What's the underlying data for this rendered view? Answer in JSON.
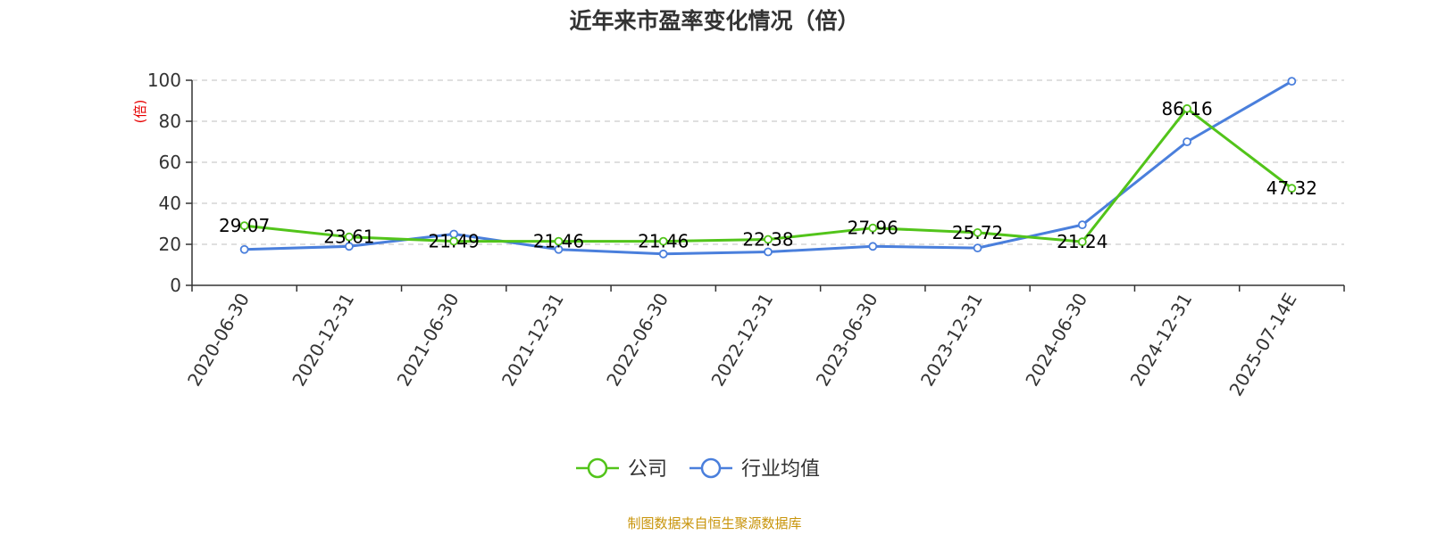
{
  "chart_data": {
    "type": "line",
    "title": "近年来市盈率变化情况（倍）",
    "ylabel": "(倍)",
    "ylim": [
      0,
      100
    ],
    "yticks": [
      0,
      20,
      40,
      60,
      80,
      100
    ],
    "grid": true,
    "legend_position": "bottom-center",
    "categories": [
      "2020-06-30",
      "2020-12-31",
      "2021-06-30",
      "2021-12-31",
      "2022-06-30",
      "2022-12-31",
      "2023-06-30",
      "2023-12-31",
      "2024-06-30",
      "2024-12-31",
      "2025-07-14E"
    ],
    "series": [
      {
        "name": "公司",
        "color": "#52c41a",
        "values": [
          29.07,
          23.61,
          21.49,
          21.46,
          21.46,
          22.38,
          27.96,
          25.72,
          21.24,
          86.16,
          47.32
        ],
        "labels": [
          "29.07",
          "23.61",
          "21.49",
          "21.46",
          "21.46",
          "22.38",
          "27.96",
          "25.72",
          "21.24",
          "86.16",
          "47.32"
        ]
      },
      {
        "name": "行业均值",
        "color": "#4a7fdc",
        "values": [
          17.5,
          19.0,
          25.0,
          17.5,
          15.3,
          16.3,
          19.0,
          18.2,
          29.5,
          70.0,
          99.5
        ]
      }
    ]
  },
  "source": "制图数据来自恒生聚源数据库",
  "colors": {
    "axis": "#333333",
    "grid": "#cccccc",
    "ylabel": "#e60000",
    "source": "#c8940a"
  }
}
